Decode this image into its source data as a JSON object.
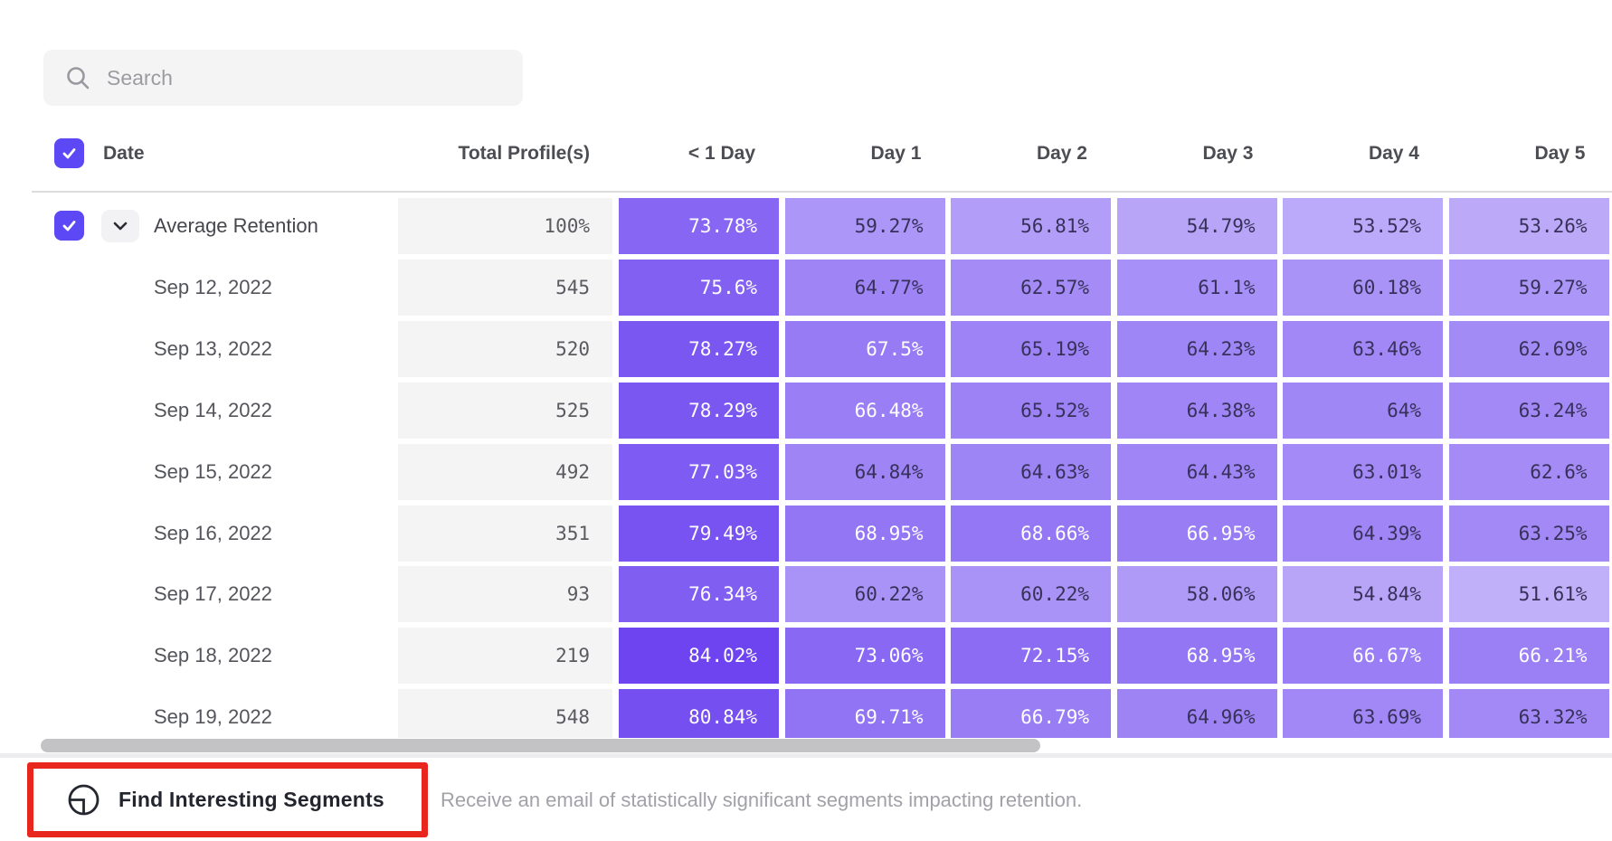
{
  "search": {
    "placeholder": "Search"
  },
  "table": {
    "date_header": "Date",
    "total_header": "Total Profile(s)",
    "day_headers": [
      "< 1 Day",
      "Day 1",
      "Day 2",
      "Day 3",
      "Day 4",
      "Day 5"
    ],
    "select_all_checked": true,
    "rows": [
      {
        "label": "Average Retention",
        "is_average": true,
        "checked": true,
        "expanded": true,
        "total": "100%",
        "values": [
          "73.78%",
          "59.27%",
          "56.81%",
          "54.79%",
          "53.52%",
          "53.26%"
        ]
      },
      {
        "label": "Sep 12, 2022",
        "total": "545",
        "values": [
          "75.6%",
          "64.77%",
          "62.57%",
          "61.1%",
          "60.18%",
          "59.27%"
        ]
      },
      {
        "label": "Sep 13, 2022",
        "total": "520",
        "values": [
          "78.27%",
          "67.5%",
          "65.19%",
          "64.23%",
          "63.46%",
          "62.69%"
        ]
      },
      {
        "label": "Sep 14, 2022",
        "total": "525",
        "values": [
          "78.29%",
          "66.48%",
          "65.52%",
          "64.38%",
          "64%",
          "63.24%"
        ]
      },
      {
        "label": "Sep 15, 2022",
        "total": "492",
        "values": [
          "77.03%",
          "64.84%",
          "64.63%",
          "64.43%",
          "63.01%",
          "62.6%"
        ]
      },
      {
        "label": "Sep 16, 2022",
        "total": "351",
        "values": [
          "79.49%",
          "68.95%",
          "68.66%",
          "66.95%",
          "64.39%",
          "63.25%"
        ]
      },
      {
        "label": "Sep 17, 2022",
        "total": "93",
        "values": [
          "76.34%",
          "60.22%",
          "60.22%",
          "58.06%",
          "54.84%",
          "51.61%"
        ]
      },
      {
        "label": "Sep 18, 2022",
        "total": "219",
        "values": [
          "84.02%",
          "73.06%",
          "72.15%",
          "68.95%",
          "66.67%",
          "66.21%"
        ]
      },
      {
        "label": "Sep 19, 2022",
        "total": "548",
        "values": [
          "80.84%",
          "69.71%",
          "66.79%",
          "64.96%",
          "63.69%",
          "63.32%"
        ]
      }
    ]
  },
  "heatmap": {
    "light_color": "#c4b5fa",
    "dark_color": "#6a41ef",
    "scale_min": 50,
    "scale_max": 85,
    "white_text_threshold": 66,
    "dark_text_color": "#37315a"
  },
  "colors": {
    "accent": "#5c48f5",
    "annotation_highlight": "#e9261d",
    "total_column_bg": "#f4f4f5"
  },
  "footer": {
    "button_label": "Find Interesting Segments",
    "description": "Receive an email of statistically significant segments impacting retention."
  }
}
